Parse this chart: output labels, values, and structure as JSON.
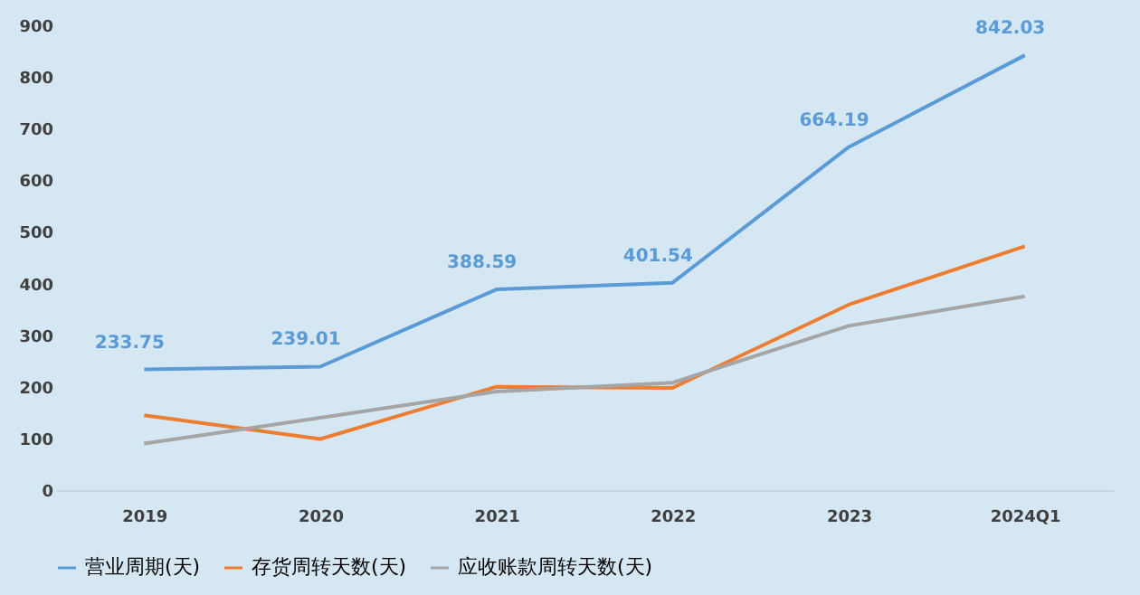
{
  "chart_data": {
    "type": "line",
    "categories": [
      "2019",
      "2020",
      "2021",
      "2022",
      "2023",
      "2024Q1"
    ],
    "series": [
      {
        "name": "营业周期(天)",
        "color": "#5b9bd5",
        "values": [
          233.75,
          239.01,
          388.59,
          401.54,
          664.19,
          842.03
        ],
        "value_labels": [
          "233.75",
          "239.01",
          "388.59",
          "401.54",
          "664.19",
          "842.03"
        ]
      },
      {
        "name": "存货周转天数(天)",
        "color": "#ed7d31",
        "values": [
          145,
          99,
          200,
          198,
          359,
          472
        ]
      },
      {
        "name": "应收账款周转天数(天)",
        "color": "#a5a5a5",
        "values": [
          90,
          140,
          191,
          208,
          318,
          375
        ]
      }
    ],
    "ylim": [
      0,
      900
    ],
    "yticks": [
      0,
      100,
      200,
      300,
      400,
      500,
      600,
      700,
      800,
      900
    ],
    "grid": false,
    "legend": "bottom",
    "marker": "none",
    "line_style": "solid"
  }
}
